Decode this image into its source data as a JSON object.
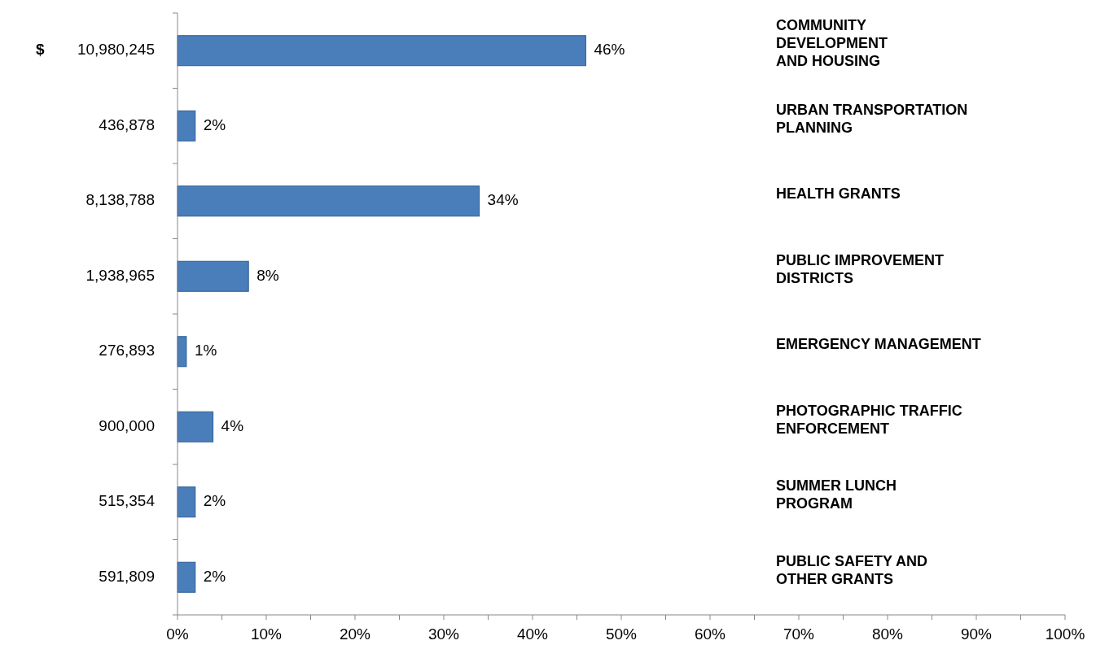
{
  "chart_data": {
    "type": "bar",
    "orientation": "horizontal",
    "categories": [
      "10,980,245",
      "436,878",
      "8,138,788",
      "1,938,965",
      "276,893",
      "900,000",
      "515,354",
      "591,809"
    ],
    "values": [
      46,
      2,
      34,
      8,
      1,
      4,
      2,
      2
    ],
    "color": "#4a7ebb",
    "value_labels": [
      "46%",
      "2%",
      "34%",
      "8%",
      "1%",
      "4%",
      "2%",
      "2%"
    ],
    "xlim": [
      0,
      100
    ],
    "xticks": [
      {
        "value": 0,
        "label": "0%"
      },
      {
        "value": 5,
        "label": null
      },
      {
        "value": 10,
        "label": "10%"
      },
      {
        "value": 15,
        "label": null
      },
      {
        "value": 20,
        "label": "20%"
      },
      {
        "value": 25,
        "label": null
      },
      {
        "value": 30,
        "label": "30%"
      },
      {
        "value": 35,
        "label": null
      },
      {
        "value": 40,
        "label": "40%"
      },
      {
        "value": 45,
        "label": null
      },
      {
        "value": 50,
        "label": "50%"
      },
      {
        "value": 55,
        "label": null
      },
      {
        "value": 60,
        "label": "60%"
      },
      {
        "value": 65,
        "label": null
      },
      {
        "value": 70,
        "label": "70%"
      },
      {
        "value": 75,
        "label": null
      },
      {
        "value": 80,
        "label": "80%"
      },
      {
        "value": 85,
        "label": null
      },
      {
        "value": 90,
        "label": "90%"
      },
      {
        "value": 95,
        "label": null
      },
      {
        "value": 100,
        "label": "100%"
      }
    ],
    "annotations": [
      "$",
      "COMMUNITY\nDEVELOPMENT\nAND HOUSING",
      "URBAN TRANSPORTATION\nPLANNING",
      "HEALTH GRANTS",
      "PUBLIC IMPROVEMENT\nDISTRICTS",
      "EMERGENCY MANAGEMENT",
      "PHOTOGRAPHIC TRAFFIC\nENFORCEMENT",
      "SUMMER LUNCH\nPROGRAM",
      "PUBLIC SAFETY AND\nOTHER GRANTS"
    ]
  }
}
